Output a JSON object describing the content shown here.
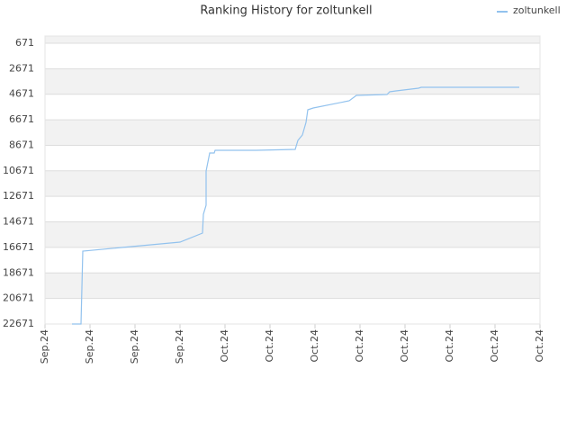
{
  "chart_data": {
    "type": "line",
    "title": "Ranking History for zoltunkell",
    "x": [
      0.6,
      0.8,
      0.84,
      3.0,
      3.5,
      3.52,
      3.58,
      3.58,
      3.66,
      3.76,
      3.78,
      4.7,
      5.56,
      5.62,
      5.72,
      5.8,
      5.84,
      5.96,
      6.76,
      6.92,
      7.6,
      7.66,
      7.8,
      8.3,
      8.36,
      10.54
    ],
    "series": [
      {
        "name": "zoltunkell",
        "color": "#92c2ee",
        "values": [
          22671,
          22671,
          16961,
          16256,
          15551,
          14071,
          13365,
          10685,
          9275,
          9275,
          9063,
          9063,
          8993,
          8287,
          7864,
          6877,
          5890,
          5749,
          5184,
          4761,
          4691,
          4479,
          4409,
          4197,
          4127,
          4127
        ]
      }
    ],
    "xlim": [
      0,
      11
    ],
    "xticks": [
      {
        "value": 0,
        "label": "Sep.24"
      },
      {
        "value": 1,
        "label": "Sep.24"
      },
      {
        "value": 2,
        "label": "Sep.24"
      },
      {
        "value": 3,
        "label": "Sep.24"
      },
      {
        "value": 4,
        "label": "Oct.24"
      },
      {
        "value": 5,
        "label": "Oct.24"
      },
      {
        "value": 6,
        "label": "Oct.24"
      },
      {
        "value": 7,
        "label": "Oct.24"
      },
      {
        "value": 8,
        "label": "Oct.24"
      },
      {
        "value": 9,
        "label": "Oct.24"
      },
      {
        "value": 10,
        "label": "Oct.24"
      },
      {
        "value": 11,
        "label": "Oct.24"
      }
    ],
    "ylim": [
      22671,
      108
    ],
    "yticks": [
      671,
      2671,
      4671,
      6671,
      8671,
      10671,
      12671,
      14671,
      16671,
      18671,
      20671,
      22671
    ],
    "grid": true,
    "legend": "top-right"
  }
}
